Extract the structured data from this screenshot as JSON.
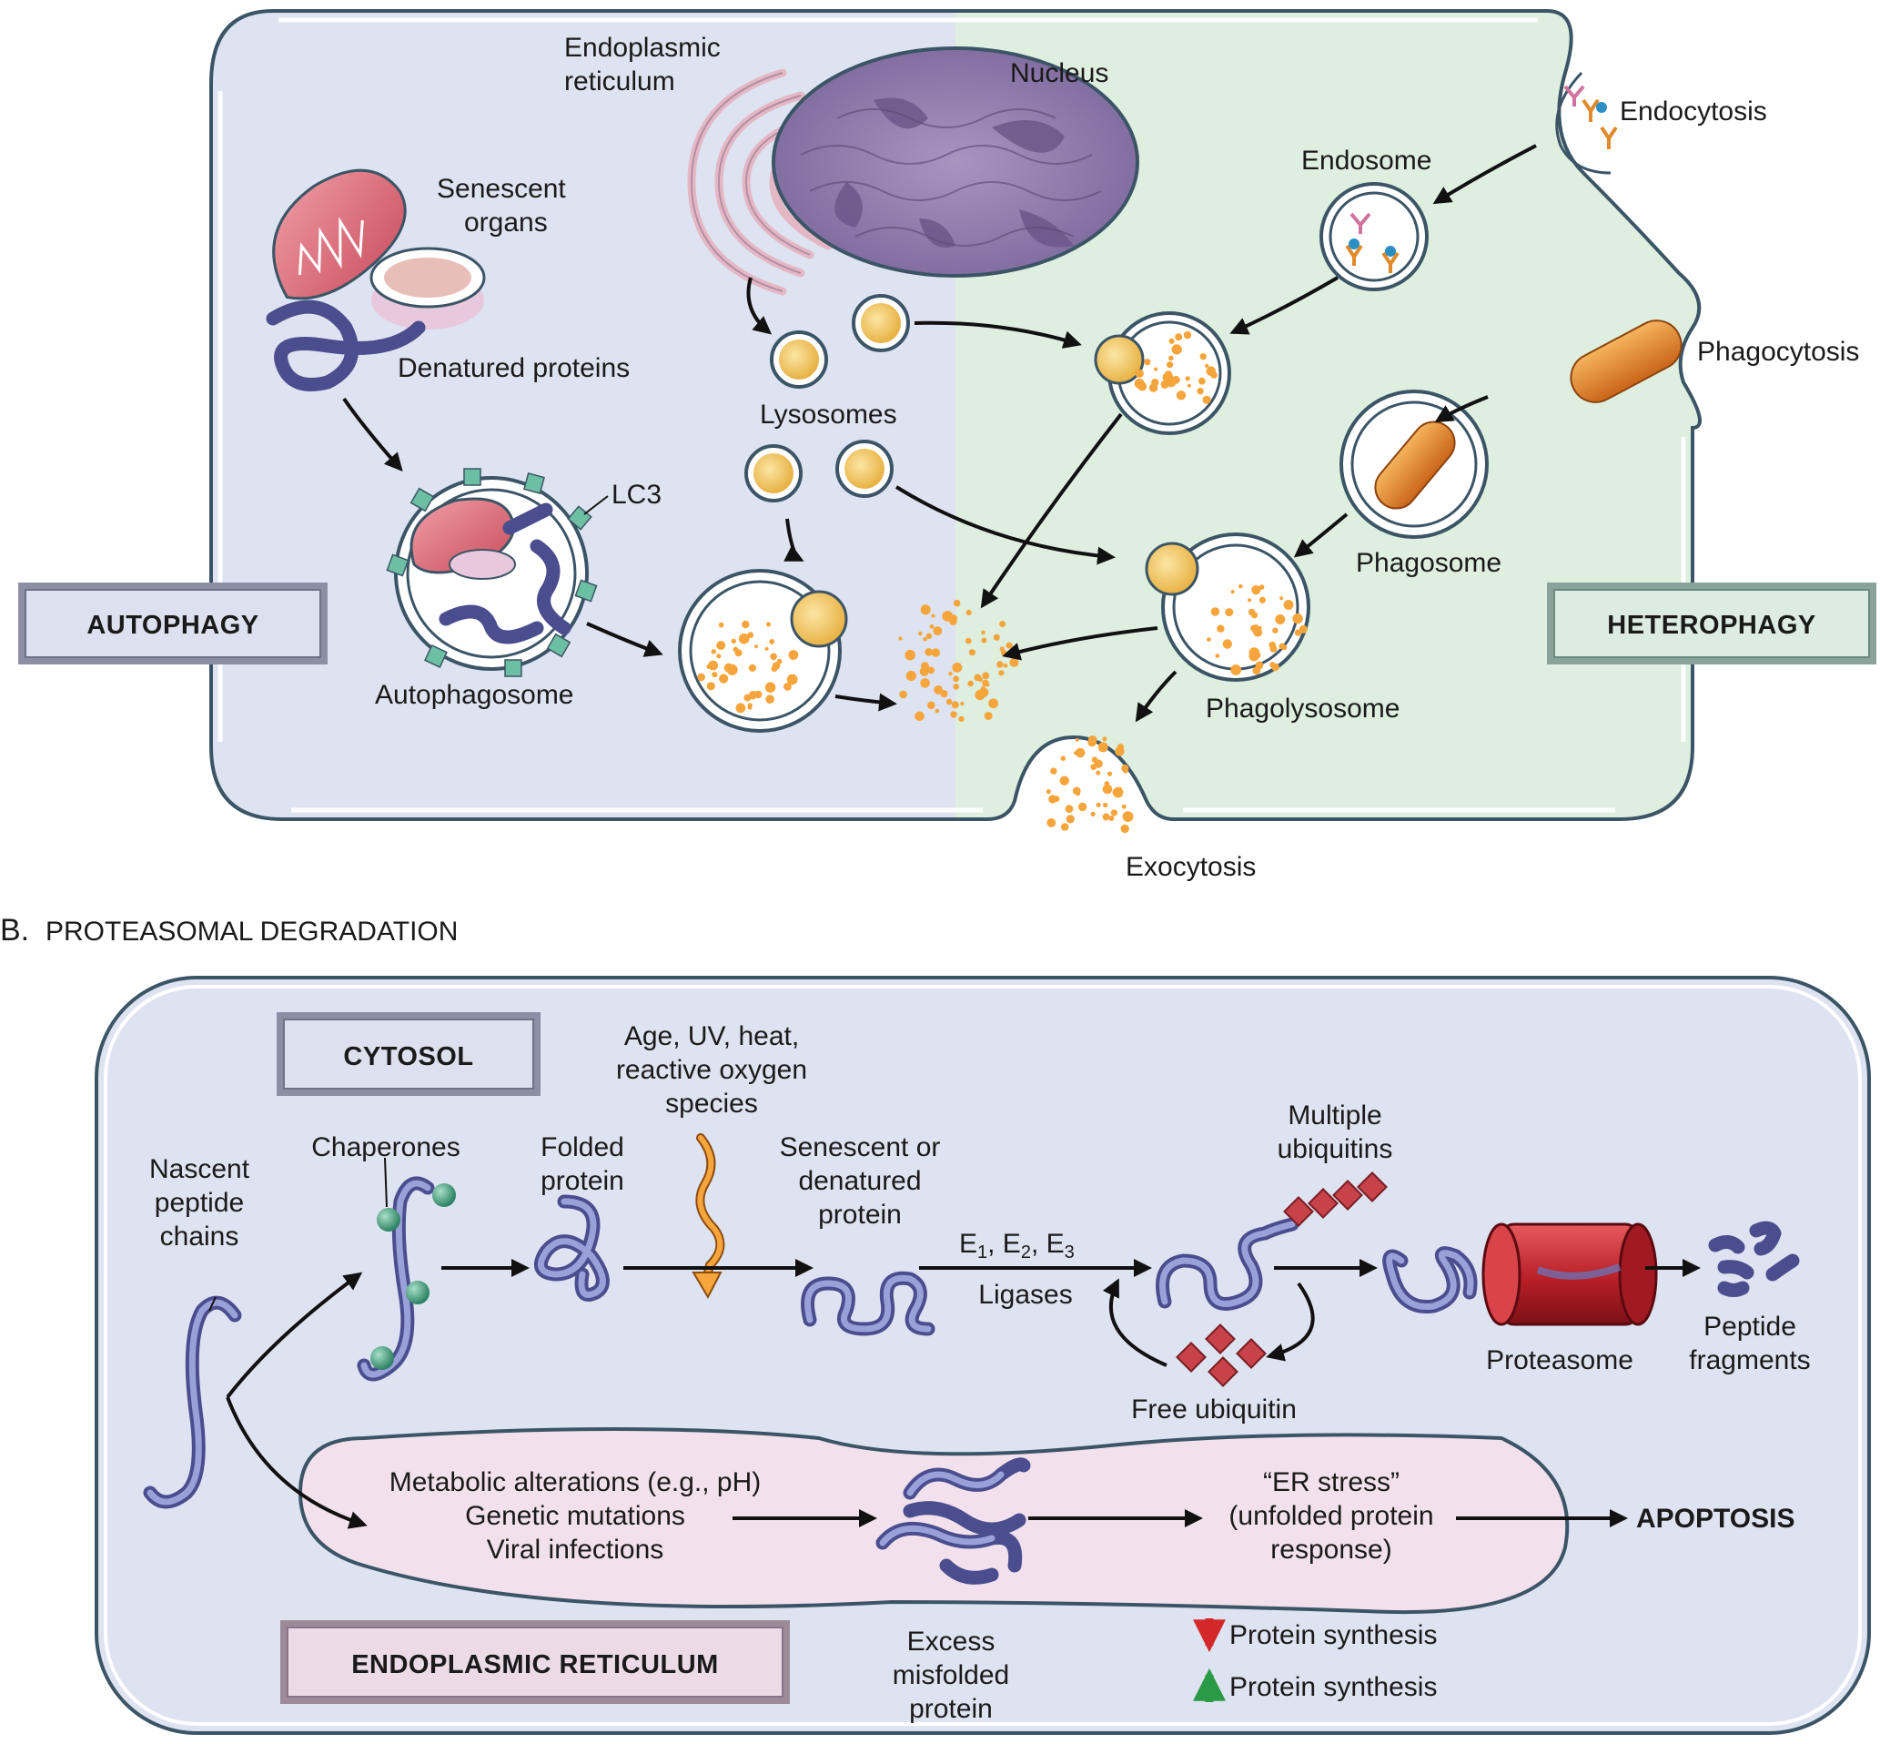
{
  "panel_a": {
    "labels": {
      "er": [
        "Endoplasmic",
        "reticulum"
      ],
      "nucleus": "Nucleus",
      "senescent_organs": [
        "Senescent",
        "organs"
      ],
      "denatured_proteins": "Denatured proteins",
      "lysosomes": "Lysosomes",
      "lc3": "LC3",
      "autophagosome": "Autophagosome",
      "endocytosis": "Endocytosis",
      "endosome": "Endosome",
      "phagocytosis": "Phagocytosis",
      "phagosome": "Phagosome",
      "phagolysosome": "Phagolysosome",
      "exocytosis": "Exocytosis"
    },
    "boxes": {
      "autophagy": "AUTOPHAGY",
      "heterophagy": "HETEROPHAGY"
    }
  },
  "panel_b": {
    "section_letter": "B.",
    "section_title": "PROTEASOMAL DEGRADATION",
    "boxes": {
      "cytosol": "CYTOSOL",
      "er": "ENDOPLASMIC RETICULUM"
    },
    "labels": {
      "nascent": [
        "Nascent",
        "peptide",
        "chains"
      ],
      "chaperones": "Chaperones",
      "folded": [
        "Folded",
        "protein"
      ],
      "stress_causes": [
        "Age, UV, heat,",
        "reactive oxygen",
        "species"
      ],
      "senescent": [
        "Senescent or",
        "denatured",
        "protein"
      ],
      "ligases": "Ligases",
      "multiple_ub": [
        "Multiple",
        "ubiquitins"
      ],
      "free_ub": "Free ubiquitin",
      "proteasome": "Proteasome",
      "peptide_frag": [
        "Peptide",
        "fragments"
      ],
      "er_causes": [
        "Metabolic alterations (e.g., pH)",
        "Genetic mutations",
        "Viral infections"
      ],
      "er_stress": [
        "“ER stress”",
        "(unfolded protein",
        "response)"
      ],
      "apoptosis": "APOPTOSIS",
      "excess": [
        "Excess",
        "misfolded",
        "protein"
      ],
      "legend_down": "Protein synthesis",
      "legend_up": "Protein synthesis"
    },
    "enzymes": {
      "e1": "E",
      "e1_sub": "1",
      "sep1": ", E",
      "e2_sub": "2",
      "sep2": ", E",
      "e3_sub": "3"
    }
  },
  "colors": {
    "autophagy_bg": "#dde3f0",
    "heterophagy_bg": "#deeedf",
    "cytosol_bg": "#dde3f0",
    "er_bg": "#f2e1ec",
    "membrane": "#3c5566",
    "protein": "#5a5fa3",
    "lysosome_fill": "#f3c352",
    "debris": "#f5a53c",
    "ubiquitin": "#c8424a",
    "proteasome": "#c0282e",
    "chaperone": "#3f9c7c",
    "lc3": "#6dbfa4",
    "bacterium": "#e67e22"
  }
}
